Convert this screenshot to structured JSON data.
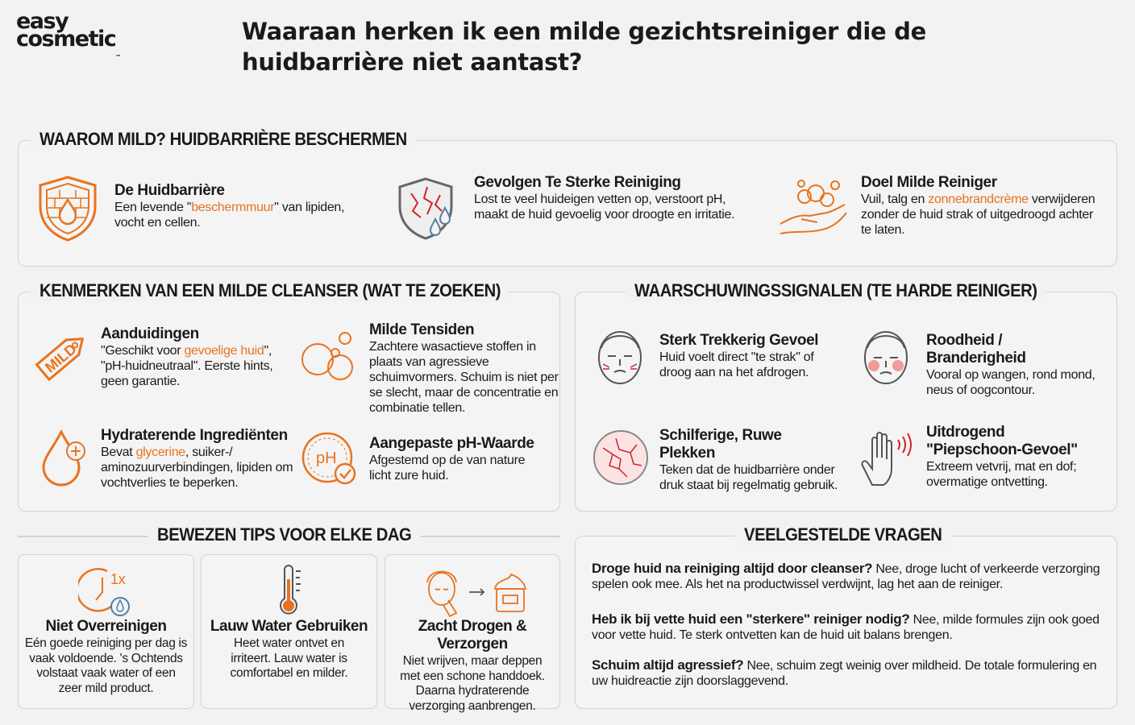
{
  "brand": {
    "line1": "easy",
    "line2": "cosmetic",
    "tm": "™"
  },
  "title": {
    "line1": "Waaraan herken ik een milde gezichtsreiniger die de",
    "line2": "huidbarrière niet aantast?"
  },
  "why": {
    "heading": "WAAROM MILD? HUIDBARRIÈRE BESCHERMEN",
    "items": [
      {
        "title": "De Huidbarrière",
        "pre": "Een levende \"",
        "hl": "beschermmuur",
        "post": "\" van lipiden, vocht en cellen."
      },
      {
        "title": "Gevolgen Te Sterke Reiniging",
        "text": "Lost te veel huideigen vetten op, verstoort pH, maakt de huid gevoelig voor droogte en irritatie."
      },
      {
        "title": "Doel Milde Reiniger",
        "pre": "Vuil, talg en ",
        "hl": "zonnebrandcrème",
        "post": " verwijderen zonder de huid strak of uitgedroogd achter te laten."
      }
    ]
  },
  "features": {
    "heading": "KENMERKEN VAN EEN MILDE CLEANSER (WAT TE ZOEKEN)",
    "tag_label": "MILD",
    "items": [
      {
        "title": "Aanduidingen",
        "pre": "\"Geschikt voor ",
        "hl": "gevoelige huid",
        "post": "\", \"pH-huidneutraal\". Eerste hints, geen garantie."
      },
      {
        "title": "Milde Tensiden",
        "text": "Zachtere wasactieve stoffen in plaats van agressieve schuimvormers. Schuim is niet per se slecht, maar de concentratie en combinatie tellen."
      },
      {
        "title": "Hydraterende Ingrediënten",
        "pre": "Bevat ",
        "hl": "glycerine",
        "post": ", suiker-/ aminozuurverbindingen, lipiden om vochtverlies te beperken."
      },
      {
        "title": "Aangepaste pH-Waarde",
        "text": "Afgestemd op de van nature licht zure huid."
      }
    ],
    "ph_label": "pH"
  },
  "warnings": {
    "heading": "WAARSCHUWINGSSIGNALEN (TE HARDE REINIGER)",
    "items": [
      {
        "title": "Sterk Trekkerig Gevoel",
        "text": "Huid voelt direct \"te strak\" of droog aan na het afdrogen."
      },
      {
        "title": "Roodheid / Branderigheid",
        "text": "Vooral op wangen, rond mond, neus of oogcontour."
      },
      {
        "title": "Schilferige, Ruwe Plekken",
        "text": "Teken dat de huidbarrière onder druk staat bij regelmatig gebruik."
      },
      {
        "title": "Uitdrogend \"Piepschoon-Gevoel\"",
        "text": "Extreem vetvrij, mat en dof; overmatige ontvetting."
      }
    ]
  },
  "tips": {
    "heading": "BEWEZEN TIPS VOOR ELKE DAG",
    "clock_label": "1x",
    "items": [
      {
        "title": "Niet Overreinigen",
        "text": "Eén goede reiniging per dag is vaak voldoende. 's Ochtends volstaat vaak water of een zeer mild product."
      },
      {
        "title": "Lauw Water Gebruiken",
        "text": "Heet water ontvet en irriteert. Lauw water is comfortabel en milder."
      },
      {
        "title": "Zacht Drogen & Verzorgen",
        "text": "Niet wrijven, maar deppen met een schone handdoek. Daarna hydraterende verzorging aanbrengen."
      }
    ]
  },
  "faq": {
    "heading": "VEELGESTELDE VRAGEN",
    "items": [
      {
        "q": "Droge huid na reiniging altijd door cleanser?",
        "a": " Nee, droge lucht of verkeerde verzorging spelen ook mee. Als het na productwissel verdwijnt, lag het aan de reiniger."
      },
      {
        "q": "Heb ik bij vette huid een \"sterkere\" reiniger nodig?",
        "a": " Nee, milde formules zijn ook goed voor vette huid. Te sterk ontvetten kan de huid uit balans brengen."
      },
      {
        "q": "Schuim altijd agressief?",
        "a": " Nee, schuim zegt weinig over mildheid. De totale formulering en uw huidreactie zijn doorslaggevend."
      }
    ]
  },
  "colors": {
    "accent": "#e8731f",
    "blue": "#4f7fa8",
    "text": "#1a1a1a"
  }
}
